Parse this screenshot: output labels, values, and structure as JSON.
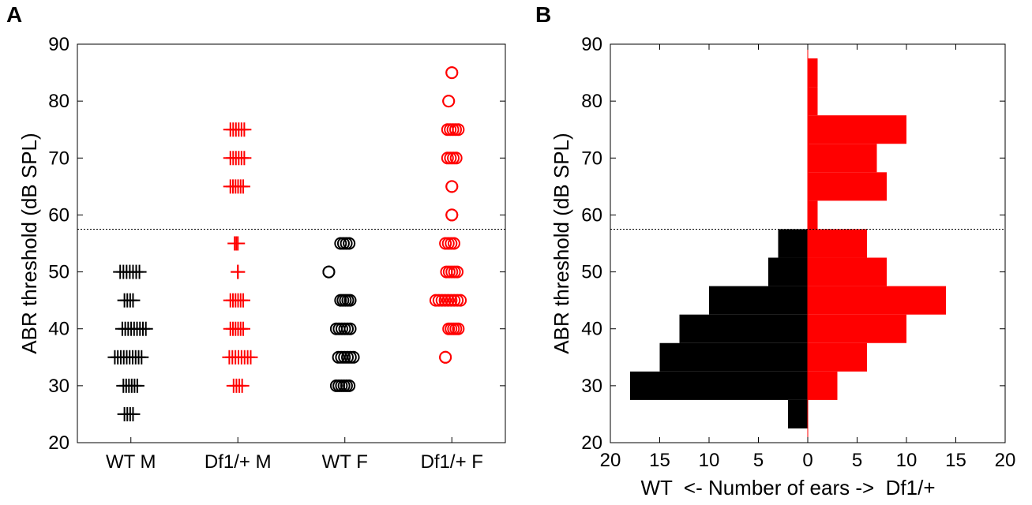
{
  "chart_data": [
    {
      "panel_label": "A",
      "type": "scatter",
      "ylabel": "ABR threshold (dB SPL)",
      "xlabel": "",
      "ylim": [
        20,
        90
      ],
      "yticks": [
        20,
        30,
        40,
        50,
        60,
        70,
        80,
        90
      ],
      "categories": [
        "WT M",
        "Df1/+ M",
        "WT F",
        "Df1/+ F"
      ],
      "threshold_line": 57.5,
      "grid": false,
      "series": [
        {
          "color": "#000000",
          "marker": "plus",
          "points": [
            [
              1,
              50
            ],
            [
              1,
              45
            ],
            [
              1,
              40
            ],
            [
              1,
              35
            ],
            [
              1,
              30
            ],
            [
              1,
              25
            ]
          ],
          "spread": [
            [
              -0.1,
              0.08
            ],
            [
              -0.06,
              0.02
            ],
            [
              -0.08,
              0.14
            ],
            [
              -0.15,
              0.1
            ],
            [
              -0.07,
              0.06
            ],
            [
              -0.06,
              0.02
            ]
          ]
        },
        {
          "color": "#ff0000",
          "marker": "plus",
          "points": [
            [
              2,
              75
            ],
            [
              2,
              70
            ],
            [
              2,
              65
            ],
            [
              2,
              55
            ],
            [
              2,
              50
            ],
            [
              2,
              45
            ],
            [
              2,
              40
            ],
            [
              2,
              35
            ],
            [
              2,
              30
            ]
          ],
          "spread": [
            [
              -0.07,
              0.06
            ],
            [
              -0.07,
              0.06
            ],
            [
              -0.07,
              0.05
            ],
            [
              -0.03,
              0.0
            ],
            [
              0.0,
              0.0
            ],
            [
              -0.07,
              0.05
            ],
            [
              -0.07,
              0.05
            ],
            [
              -0.08,
              0.12
            ],
            [
              -0.04,
              0.04
            ]
          ]
        },
        {
          "color": "#000000",
          "marker": "circle",
          "points": [
            [
              3,
              55
            ],
            [
              3,
              50
            ],
            [
              3,
              45
            ],
            [
              3,
              40
            ],
            [
              3,
              35
            ],
            [
              3,
              30
            ]
          ],
          "spread": [
            [
              -0.04,
              0.04
            ],
            [
              -0.15,
              -0.15
            ],
            [
              -0.04,
              0.05
            ],
            [
              -0.08,
              0.05
            ],
            [
              -0.06,
              0.08
            ],
            [
              -0.08,
              0.04
            ]
          ]
        },
        {
          "color": "#ff0000",
          "marker": "circle",
          "points": [
            [
              4,
              85
            ],
            [
              4,
              80
            ],
            [
              4,
              75
            ],
            [
              4,
              70
            ],
            [
              4,
              65
            ],
            [
              4,
              60
            ],
            [
              4,
              55
            ],
            [
              4,
              50
            ],
            [
              4,
              45
            ],
            [
              4,
              40
            ],
            [
              4,
              35
            ]
          ],
          "spread": [
            [
              0,
              0
            ],
            [
              -0.03,
              -0.03
            ],
            [
              -0.04,
              0.06
            ],
            [
              -0.04,
              0.04
            ],
            [
              0,
              0
            ],
            [
              0,
              0
            ],
            [
              -0.06,
              0.02
            ],
            [
              -0.05,
              0.05
            ],
            [
              -0.15,
              0.08
            ],
            [
              -0.03,
              0.06
            ],
            [
              -0.06,
              -0.06
            ]
          ]
        }
      ]
    },
    {
      "panel_label": "B",
      "type": "bar",
      "orientation": "horizontal",
      "ylabel": "ABR threshold (dB SPL)",
      "xlabel": "WT  <- Number of ears ->  Df1/+",
      "ylim": [
        20,
        90
      ],
      "yticks": [
        20,
        30,
        40,
        50,
        60,
        70,
        80,
        90
      ],
      "xlim": [
        -20,
        20
      ],
      "xticks": [
        20,
        15,
        10,
        5,
        0,
        5,
        10,
        15,
        20
      ],
      "threshold_line": 57.5,
      "bin_width": 5,
      "bin_centers": [
        25,
        30,
        35,
        40,
        45,
        50,
        55,
        60,
        65,
        70,
        75,
        80,
        85
      ],
      "series": [
        {
          "color": "#000000",
          "values": [
            2,
            18,
            15,
            13,
            10,
            4,
            3,
            0,
            0,
            0,
            0,
            0,
            0
          ]
        },
        {
          "color": "#ff0000",
          "values": [
            0,
            3,
            6,
            10,
            14,
            8,
            6,
            1,
            8,
            7,
            10,
            1,
            1
          ]
        }
      ]
    }
  ]
}
